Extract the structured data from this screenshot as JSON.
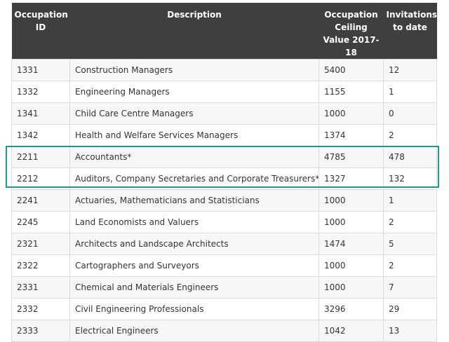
{
  "table": {
    "headers": {
      "id": "Occupation ID",
      "description": "Description",
      "ceiling": "Occupation Ceiling Value 2017-18",
      "invitations": "Invitations to date"
    },
    "rows": [
      {
        "id": "1331",
        "description": "Construction Managers",
        "ceiling": "5400",
        "invitations": "12"
      },
      {
        "id": "1332",
        "description": "Engineering Managers",
        "ceiling": "1155",
        "invitations": "1"
      },
      {
        "id": "1341",
        "description": "Child Care Centre Managers",
        "ceiling": "1000",
        "invitations": "0"
      },
      {
        "id": "1342",
        "description": "Health and Welfare Services Managers",
        "ceiling": "1374",
        "invitations": "2"
      },
      {
        "id": "2211",
        "description": "Accountants*",
        "ceiling": "4785",
        "invitations": "478"
      },
      {
        "id": "2212",
        "description": "Auditors, Company Secretaries and Corporate Treasurers*",
        "ceiling": "1327",
        "invitations": "132"
      },
      {
        "id": "2241",
        "description": "Actuaries, Mathematicians and Statisticians",
        "ceiling": "1000",
        "invitations": "1"
      },
      {
        "id": "2245",
        "description": "Land Economists and Valuers",
        "ceiling": "1000",
        "invitations": "2"
      },
      {
        "id": "2321",
        "description": "Architects and Landscape Architects",
        "ceiling": "1474",
        "invitations": "5"
      },
      {
        "id": "2322",
        "description": "Cartographers and Surveyors",
        "ceiling": "1000",
        "invitations": "2"
      },
      {
        "id": "2331",
        "description": "Chemical and Materials Engineers",
        "ceiling": "1000",
        "invitations": "7"
      },
      {
        "id": "2332",
        "description": "Civil Engineering Professionals",
        "ceiling": "3296",
        "invitations": "29"
      },
      {
        "id": "2333",
        "description": "Electrical Engineers",
        "ceiling": "1042",
        "invitations": "13"
      }
    ],
    "highlighted_ids": [
      "2211",
      "2212"
    ]
  },
  "colors": {
    "header_bg": "#3f3f3f",
    "highlight": "#1b9a8e"
  }
}
